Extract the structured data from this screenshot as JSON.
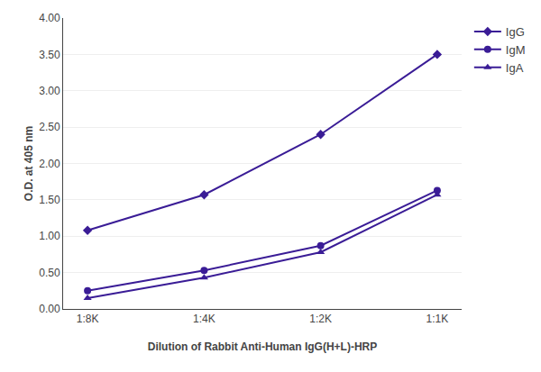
{
  "chart_data": {
    "type": "line",
    "xlabel": "Dilution of Rabbit Anti-Human IgG(H+L)-HRP",
    "ylabel": "O.D. at 405 nm",
    "categories": [
      "1:8K",
      "1:4K",
      "1:2K",
      "1:1K"
    ],
    "series": [
      {
        "name": "IgG",
        "color": "#3a1c96",
        "marker": "diamond",
        "values": [
          1.08,
          1.57,
          2.4,
          3.5
        ]
      },
      {
        "name": "IgM",
        "color": "#3a1c96",
        "marker": "circle",
        "values": [
          0.25,
          0.53,
          0.87,
          1.63
        ]
      },
      {
        "name": "IgA",
        "color": "#3a1c96",
        "marker": "triangle",
        "values": [
          0.15,
          0.43,
          0.78,
          1.57
        ]
      }
    ],
    "ylim": [
      0.0,
      4.0
    ],
    "yticks": [
      {
        "value": 0.0,
        "label": "0.00"
      },
      {
        "value": 0.5,
        "label": "0.50"
      },
      {
        "value": 1.0,
        "label": "1.00"
      },
      {
        "value": 1.5,
        "label": "1.50"
      },
      {
        "value": 2.0,
        "label": "2.00"
      },
      {
        "value": 2.5,
        "label": "2.50"
      },
      {
        "value": 3.0,
        "label": "3.00"
      },
      {
        "value": 3.5,
        "label": "3.50"
      },
      {
        "value": 4.0,
        "label": "4.00"
      }
    ],
    "grid": true,
    "legend": "right"
  }
}
